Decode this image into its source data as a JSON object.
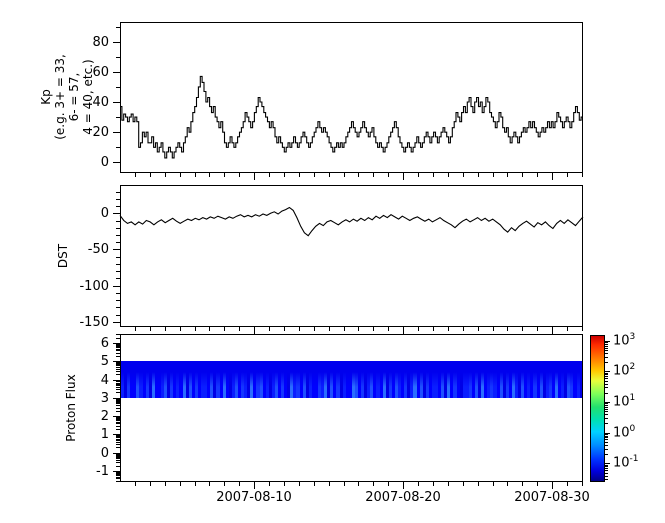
{
  "xaxis": {
    "tick_labels": [
      "2007-08-10",
      "2007-08-20",
      "2007-08-30"
    ],
    "tick_day_offsets": [
      9,
      19,
      29
    ],
    "minor_tick": "daily",
    "span_days": 31.07,
    "x_start": "2007-08-01"
  },
  "chart_data": [
    {
      "type": "line",
      "style": "step",
      "ylabel_lines": [
        "Kp",
        "(e.g. 3+ = 33,",
        "6- = 57,",
        "4 = 40, etc.)"
      ],
      "ylim": [
        -7,
        93
      ],
      "yticks_major": [
        0,
        20,
        40,
        60,
        80
      ],
      "yticks_minor": [
        10,
        30,
        50,
        70,
        90
      ],
      "cadence_hours": 3,
      "line_color": "#000000",
      "values": [
        37,
        28,
        32,
        30,
        27,
        30,
        32,
        27,
        30,
        27,
        10,
        13,
        20,
        17,
        20,
        13,
        13,
        17,
        10,
        13,
        7,
        10,
        13,
        7,
        3,
        7,
        10,
        7,
        3,
        7,
        10,
        13,
        10,
        7,
        13,
        17,
        23,
        20,
        27,
        33,
        37,
        43,
        50,
        57,
        53,
        47,
        40,
        43,
        37,
        33,
        37,
        30,
        27,
        23,
        27,
        20,
        13,
        10,
        13,
        17,
        13,
        10,
        13,
        17,
        20,
        23,
        27,
        33,
        30,
        27,
        23,
        27,
        33,
        37,
        43,
        40,
        37,
        33,
        30,
        27,
        23,
        27,
        23,
        17,
        13,
        17,
        13,
        10,
        7,
        10,
        13,
        10,
        13,
        17,
        13,
        10,
        13,
        17,
        20,
        17,
        13,
        10,
        13,
        17,
        20,
        23,
        27,
        23,
        20,
        23,
        20,
        17,
        13,
        10,
        7,
        10,
        13,
        10,
        13,
        10,
        13,
        17,
        20,
        23,
        27,
        23,
        20,
        17,
        20,
        23,
        27,
        23,
        20,
        17,
        20,
        23,
        17,
        13,
        10,
        13,
        10,
        7,
        10,
        13,
        17,
        20,
        23,
        27,
        23,
        17,
        13,
        10,
        7,
        10,
        13,
        10,
        7,
        10,
        13,
        17,
        13,
        10,
        13,
        17,
        20,
        17,
        13,
        17,
        20,
        17,
        13,
        17,
        20,
        23,
        20,
        17,
        13,
        17,
        23,
        27,
        33,
        30,
        27,
        33,
        37,
        33,
        40,
        43,
        37,
        33,
        40,
        43,
        37,
        40,
        33,
        37,
        43,
        40,
        33,
        30,
        27,
        23,
        27,
        33,
        30,
        23,
        20,
        23,
        17,
        13,
        17,
        20,
        17,
        13,
        17,
        20,
        23,
        20,
        23,
        27,
        23,
        27,
        23,
        20,
        17,
        20,
        23,
        20,
        23,
        27,
        23,
        27,
        23,
        27,
        33,
        30,
        27,
        23,
        27,
        30,
        27,
        23,
        27,
        33,
        37,
        33,
        28,
        30
      ]
    },
    {
      "type": "line",
      "style": "linear",
      "ylabel": "DST",
      "ylim": [
        -157,
        39
      ],
      "yticks_major": [
        0,
        -50,
        -100,
        -150
      ],
      "yminor_step": 10,
      "cadence_hours": 6,
      "line_color": "#000000",
      "values": [
        -3,
        -10,
        -14,
        -12,
        -16,
        -12,
        -15,
        -10,
        -12,
        -16,
        -12,
        -9,
        -13,
        -10,
        -7,
        -11,
        -14,
        -11,
        -8,
        -10,
        -7,
        -9,
        -6,
        -8,
        -5,
        -7,
        -4,
        -6,
        -8,
        -5,
        -7,
        -4,
        -2,
        -5,
        -3,
        -5,
        -2,
        -4,
        -1,
        -3,
        0,
        2,
        -1,
        3,
        5,
        8,
        4,
        -6,
        -18,
        -27,
        -31,
        -24,
        -18,
        -14,
        -17,
        -12,
        -10,
        -13,
        -16,
        -12,
        -9,
        -12,
        -8,
        -11,
        -7,
        -10,
        -6,
        -9,
        -4,
        -7,
        -3,
        -6,
        -2,
        -5,
        -8,
        -4,
        -7,
        -10,
        -7,
        -5,
        -8,
        -11,
        -8,
        -12,
        -9,
        -6,
        -10,
        -13,
        -16,
        -20,
        -15,
        -11,
        -8,
        -12,
        -9,
        -6,
        -10,
        -7,
        -11,
        -8,
        -12,
        -16,
        -22,
        -26,
        -20,
        -24,
        -18,
        -14,
        -11,
        -15,
        -19,
        -13,
        -16,
        -12,
        -17,
        -21,
        -14,
        -10,
        -14,
        -9,
        -13,
        -17,
        -11,
        -5
      ]
    },
    {
      "type": "heatmap",
      "ylabel": "Proton Flux",
      "ylim": [
        -1.6,
        6.5
      ],
      "yticks_major": [
        6,
        5,
        4,
        3,
        2,
        1,
        0,
        -1
      ],
      "yscale_minor": "log-decade",
      "band": {
        "y_from": 3,
        "y_to": 5,
        "base_color": "#0000ee"
      },
      "stripe_levels": "314225324162235142326152423325142621352431624523135242163425132243615241322652413523261425324136251423325162421334251623432514263152324251342623154231",
      "colorbar": {
        "scale": "log",
        "tick_exponents": [
          3,
          2,
          1,
          0,
          -1
        ],
        "range_exponents": [
          -1.61,
          3.19
        ],
        "colormap": "jet"
      }
    }
  ]
}
